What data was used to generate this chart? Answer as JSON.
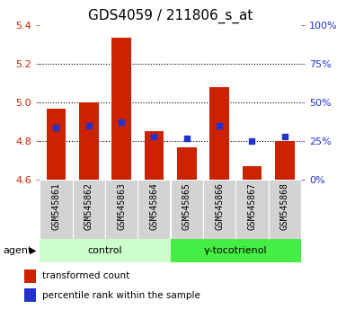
{
  "title": "GDS4059 / 211806_s_at",
  "samples": [
    "GSM545861",
    "GSM545862",
    "GSM545863",
    "GSM545864",
    "GSM545865",
    "GSM545866",
    "GSM545867",
    "GSM545868"
  ],
  "transformed_counts": [
    4.97,
    5.0,
    5.335,
    4.85,
    4.77,
    5.08,
    4.67,
    4.8
  ],
  "percentile_ranks": [
    34,
    35,
    37,
    28,
    27,
    35,
    25,
    28
  ],
  "bar_bottom": 4.6,
  "ylim_left": [
    4.6,
    5.4
  ],
  "ylim_right": [
    0,
    100
  ],
  "yticks_left": [
    4.6,
    4.8,
    5.0,
    5.2,
    5.4
  ],
  "yticks_right": [
    0,
    25,
    50,
    75,
    100
  ],
  "bar_color": "#cc2200",
  "dot_color": "#2233cc",
  "groups": [
    {
      "label": "control",
      "indices": [
        0,
        1,
        2,
        3
      ],
      "color": "#ccffcc"
    },
    {
      "label": "γ-tocotrienol",
      "indices": [
        4,
        5,
        6,
        7
      ],
      "color": "#44ee44"
    }
  ],
  "agent_label": "agent",
  "legend_items": [
    {
      "label": "transformed count",
      "color": "#cc2200"
    },
    {
      "label": "percentile rank within the sample",
      "color": "#2233cc"
    }
  ],
  "left_tick_color": "#cc2200",
  "right_tick_color": "#2233cc",
  "bar_width": 0.6,
  "title_fontsize": 11,
  "background_color": "#ffffff",
  "box_color": "#d3d3d3",
  "box_edge_color": "#aaaaaa"
}
